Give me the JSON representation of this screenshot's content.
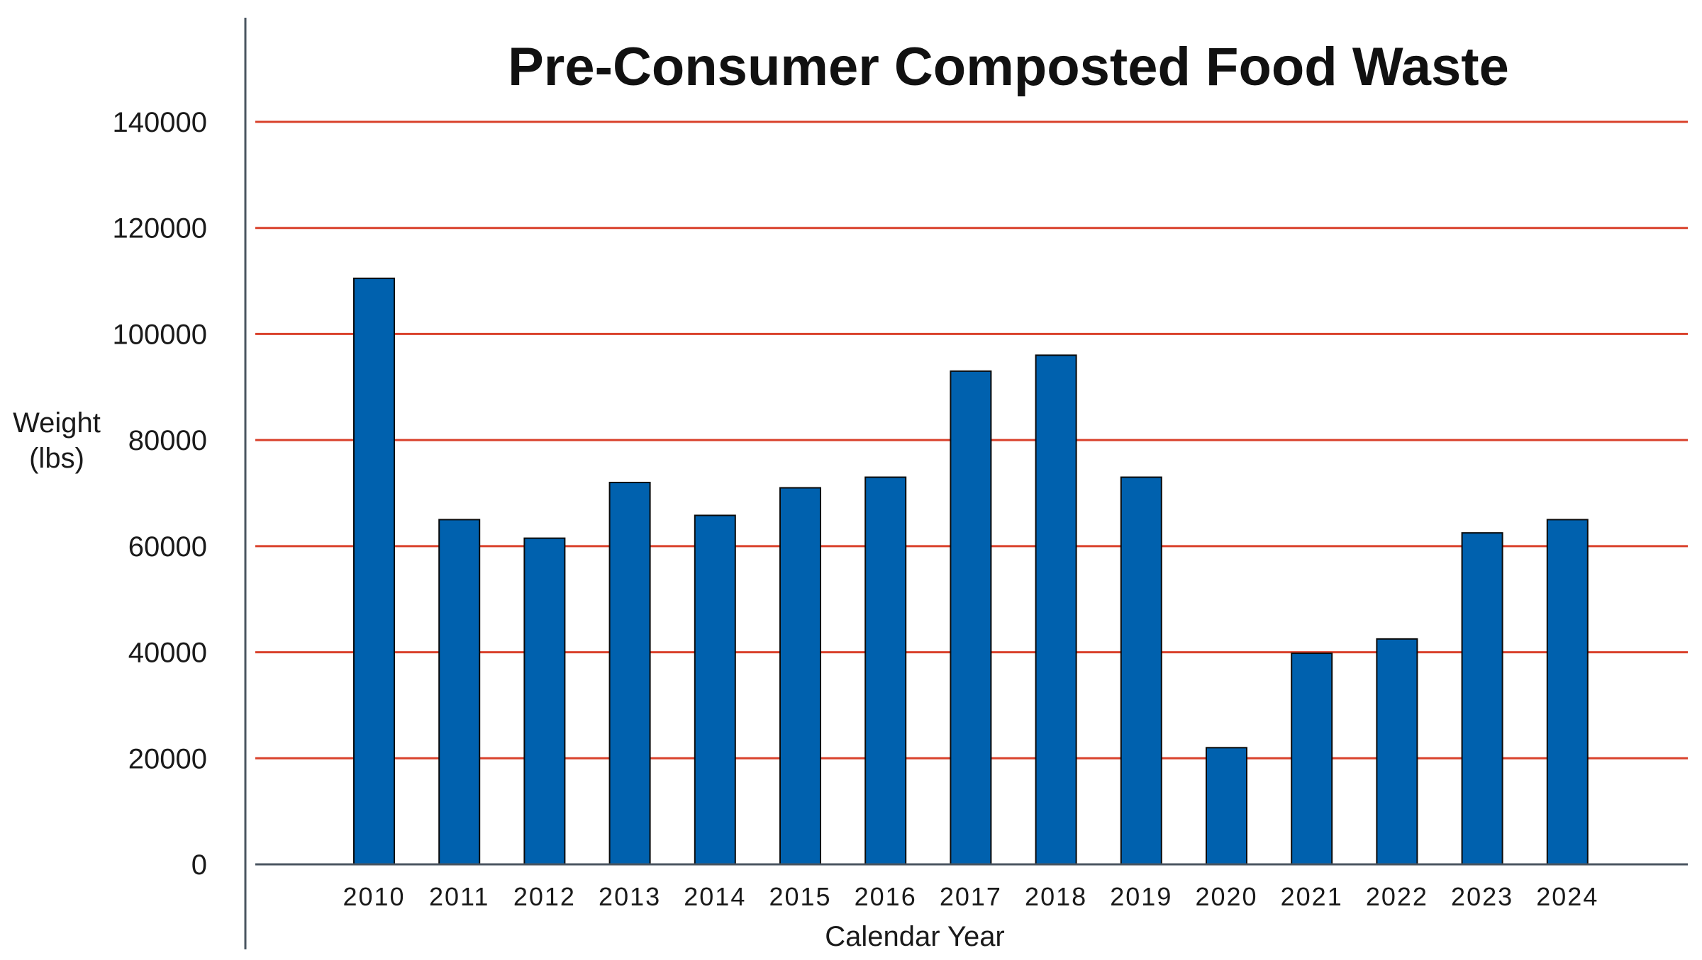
{
  "chart_data": {
    "type": "bar",
    "title": "Pre-Consumer Composted Food Waste",
    "xlabel": "Calendar Year",
    "ylabel_lines": [
      "Weight",
      "(lbs)"
    ],
    "categories": [
      "2010",
      "2011",
      "2012",
      "2013",
      "2014",
      "2015",
      "2016",
      "2017",
      "2018",
      "2019",
      "2020",
      "2021",
      "2022",
      "2023",
      "2024"
    ],
    "values": [
      110500,
      65000,
      61500,
      72000,
      65800,
      71000,
      73000,
      93000,
      96000,
      73000,
      22000,
      39800,
      42500,
      62500,
      65000
    ],
    "ylim": [
      0,
      140000
    ],
    "yticks": [
      "0",
      "20000",
      "40000",
      "60000",
      "80000",
      "100000",
      "120000",
      "140000"
    ],
    "grid": true,
    "colors": {
      "bar": "#0061ae",
      "bar_outline": "#0a0a0a",
      "grid": "#d9412b",
      "axis": "#4a5560"
    }
  }
}
